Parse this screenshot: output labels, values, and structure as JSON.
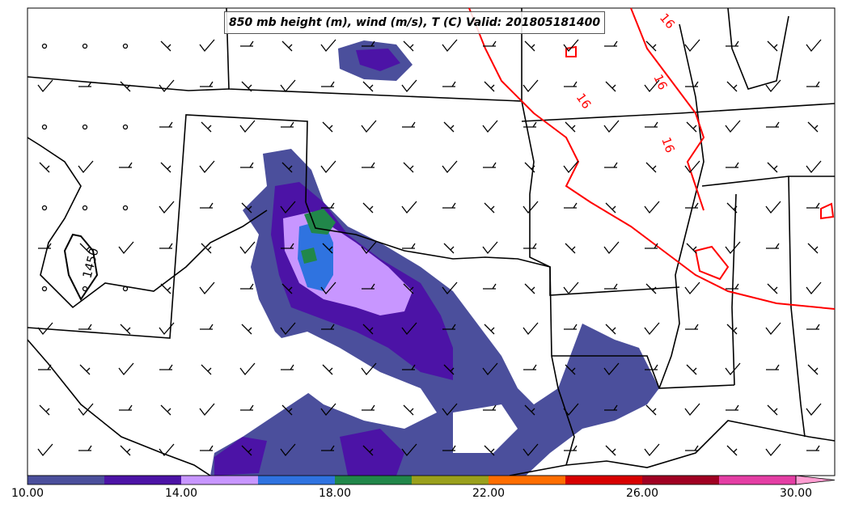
{
  "title": "850 mb height (m), wind (m/s), T (C) Valid: 201805181400",
  "contours": {
    "temperature_label": "16",
    "temperature_color": "#ff0000",
    "height_label": "1450",
    "height_color": "#000000"
  },
  "colorbar": {
    "colors": [
      "#4b4f9c",
      "#4c13a6",
      "#c896ff",
      "#2f73e0",
      "#21874a",
      "#9aa01c",
      "#ff6e00",
      "#d80000",
      "#a00022",
      "#e43ea4",
      "#ff9ed2"
    ],
    "tick_labels": [
      "10.00",
      "14.00",
      "18.00",
      "22.00",
      "26.00",
      "30.00"
    ],
    "tick_values": [
      10,
      14,
      18,
      22,
      26,
      30
    ],
    "range": [
      10,
      31
    ]
  },
  "colors": {
    "state_borders": "#000000",
    "background": "#ffffff"
  }
}
